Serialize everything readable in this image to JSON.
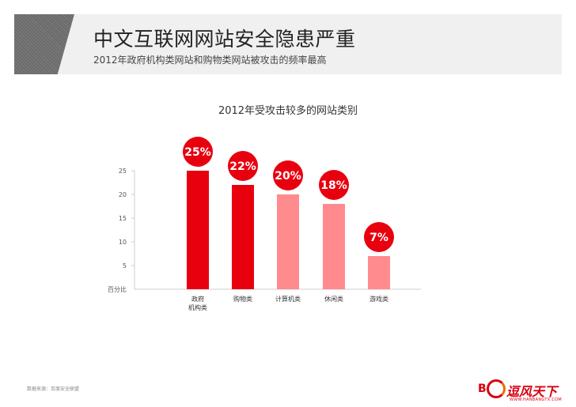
{
  "header": {
    "title": "中文互联网网站安全隐患严重",
    "subtitle": "2012年政府机构类网站和购物类网站被攻击的频率最高"
  },
  "colors": {
    "bar_dark": "#e8000f",
    "bar_light": "#ff8b8e",
    "badge": "#e8000f",
    "axis": "#cccccc",
    "header_band": "#f0f0f0"
  },
  "chart_data": {
    "type": "bar",
    "title": "2012年受攻击较多的网站类别",
    "ylabel": "百分比",
    "ylim": [
      0,
      25
    ],
    "yticks": [
      5,
      10,
      15,
      20,
      25
    ],
    "grid": false,
    "categories": [
      [
        "政府",
        "机构类"
      ],
      [
        "购物类"
      ],
      [
        "计算机类"
      ],
      [
        "休闲类"
      ],
      [
        "游戏类"
      ]
    ],
    "values": [
      25,
      22,
      20,
      18,
      7
    ],
    "data_labels": [
      "25%",
      "22%",
      "20%",
      "18%",
      "7%"
    ],
    "bar_tone": [
      "dark",
      "dark",
      "light",
      "light",
      "light"
    ]
  },
  "footer": {
    "source": "数据来源：百度安全联盟"
  },
  "logo": {
    "letter": "B",
    "text": "逗风天下",
    "url": "WWW.HANBANGTX.COM"
  }
}
